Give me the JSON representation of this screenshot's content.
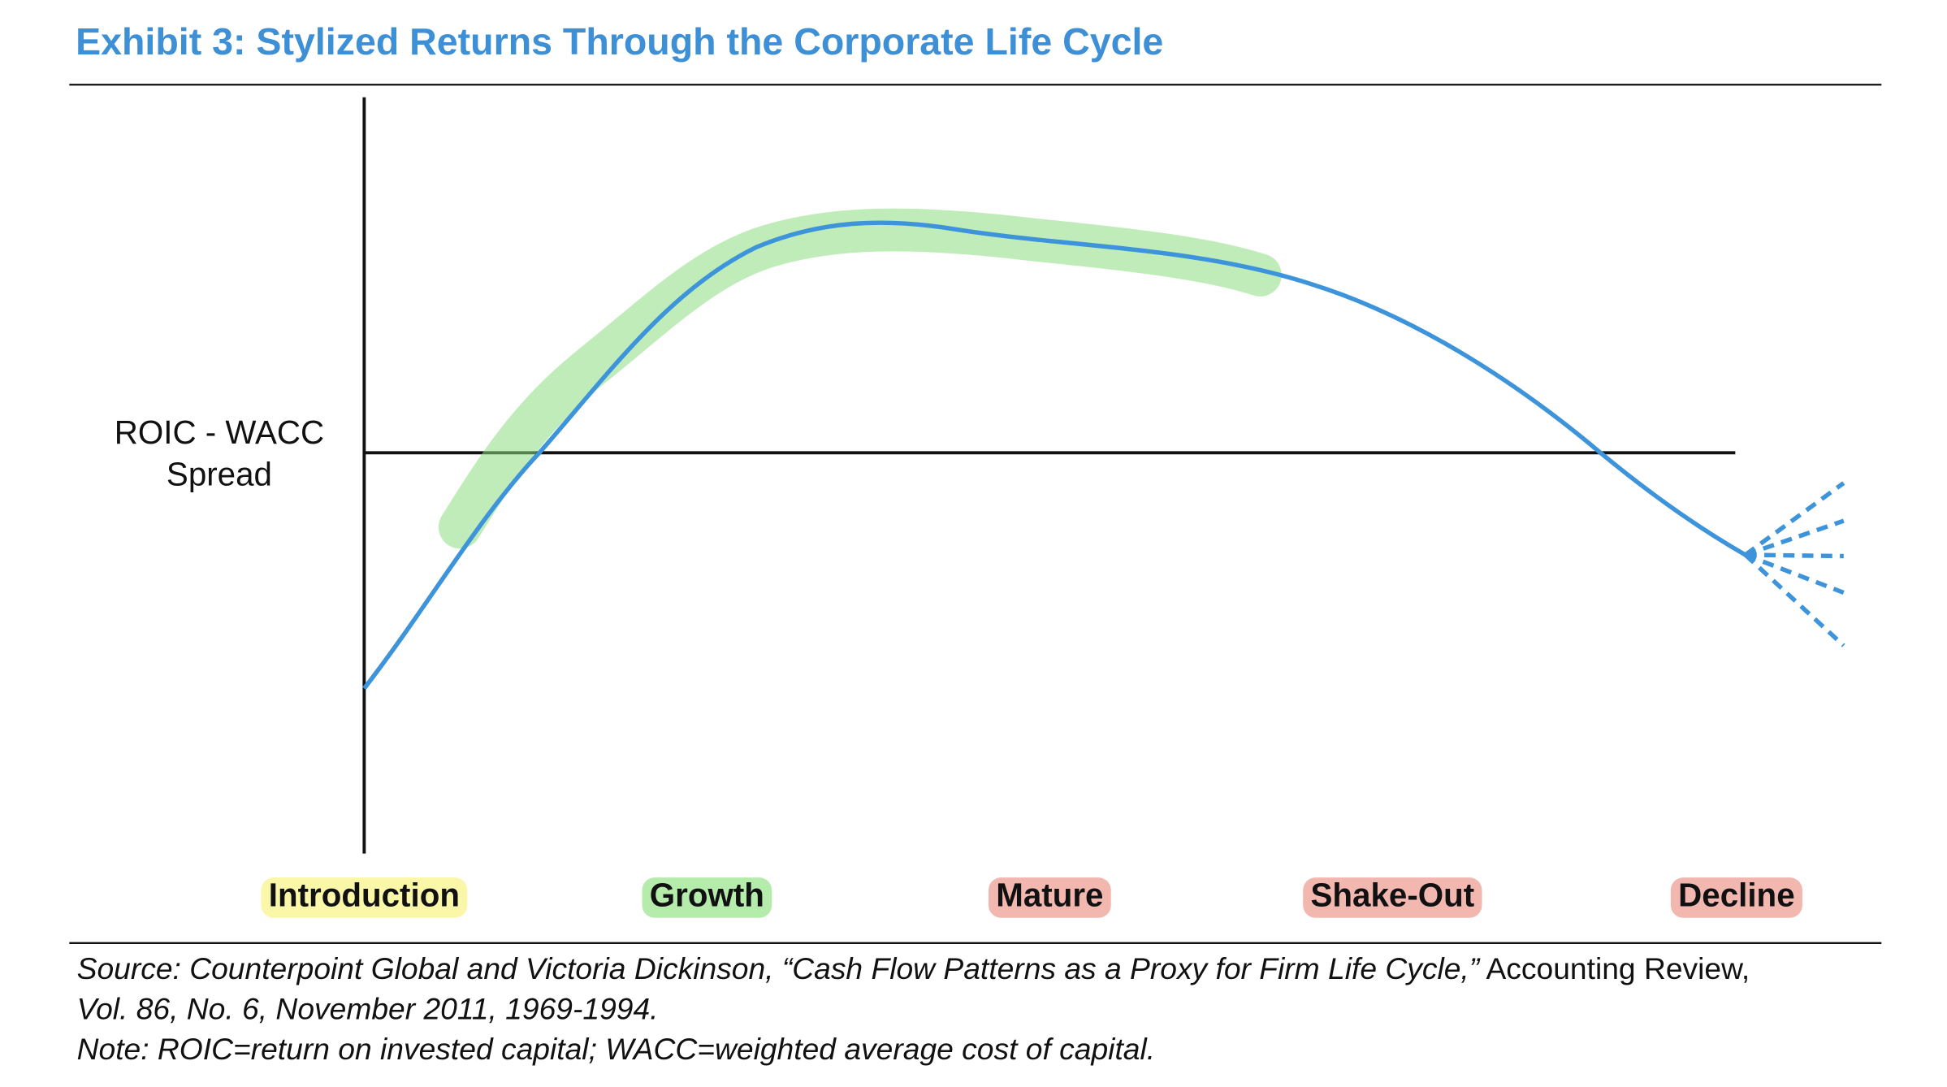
{
  "title": "Exhibit 3: Stylized Returns Through the Corporate Life Cycle",
  "y_axis_label": [
    "ROIC - WACC",
    "Spread"
  ],
  "stages": [
    "Introduction",
    "Growth",
    "Mature",
    "Shake-Out",
    "Decline"
  ],
  "source": [
    "Source: Counterpoint Global and Victoria Dickinson, “Cash Flow Patterns as a Proxy for Firm Life Cycle,”",
    " Accounting Review,",
    "Vol. 86, No. 6, November 2011, 1969-1994."
  ],
  "note": "Note: ROIC=return on invested capital; WACC=weighted average cost of capital."
}
